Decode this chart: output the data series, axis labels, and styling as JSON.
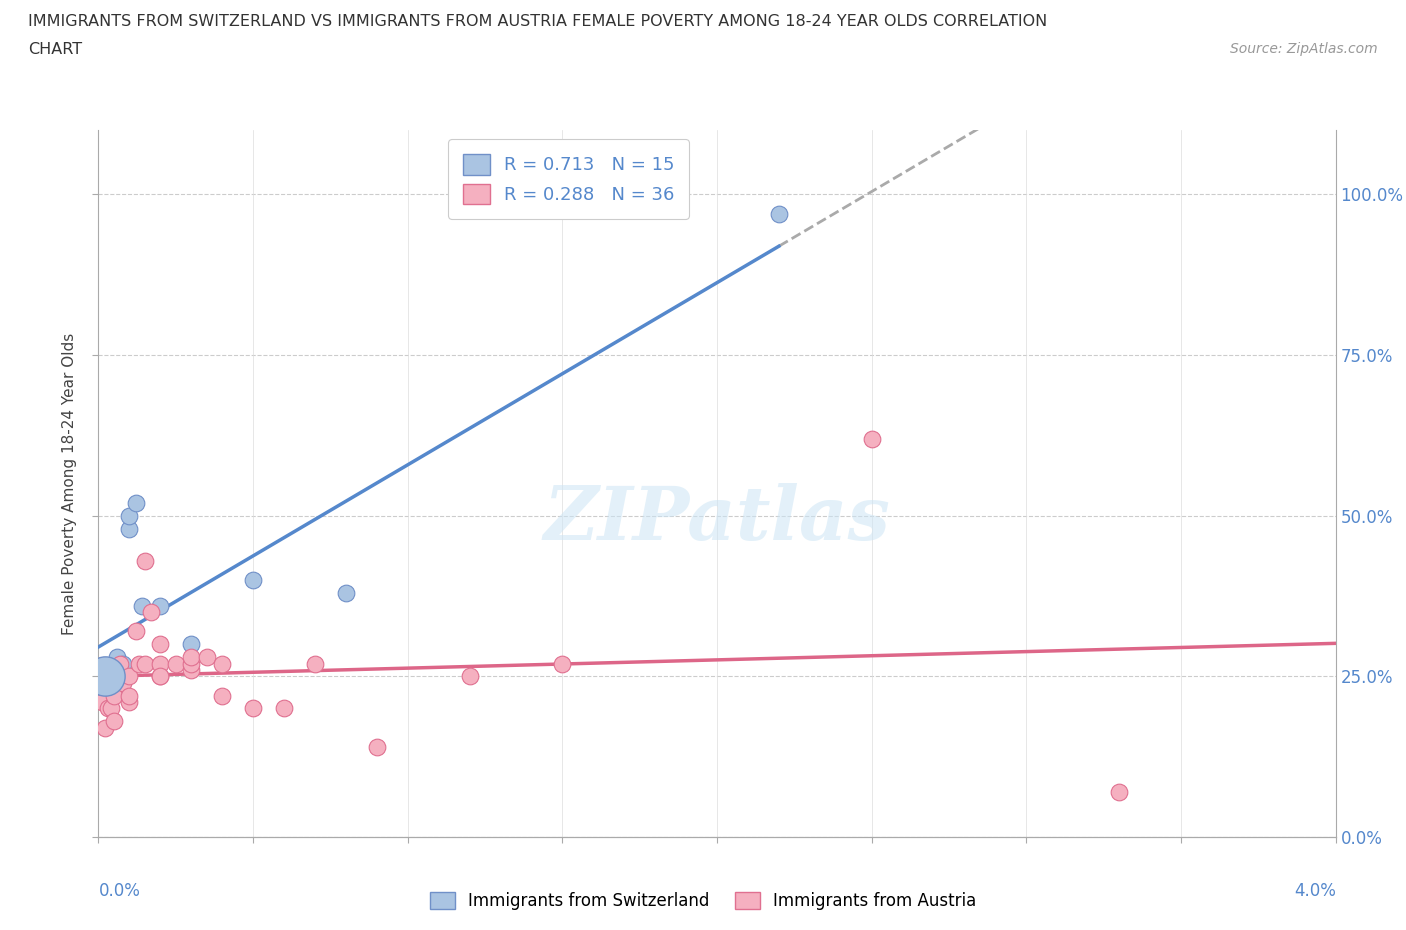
{
  "title_line1": "IMMIGRANTS FROM SWITZERLAND VS IMMIGRANTS FROM AUSTRIA FEMALE POVERTY AMONG 18-24 YEAR OLDS CORRELATION",
  "title_line2": "CHART",
  "source_text": "Source: ZipAtlas.com",
  "ylabel": "Female Poverty Among 18-24 Year Olds",
  "switzerland_color": "#aac4e2",
  "austria_color": "#f5b0c0",
  "switzerland_edge": "#7090c8",
  "austria_edge": "#e07090",
  "regression_switzerland_color": "#5588cc",
  "regression_austria_color": "#dd6688",
  "regression_dashed_color": "#aaaaaa",
  "R_switzerland": 0.713,
  "N_switzerland": 15,
  "R_austria": 0.288,
  "N_austria": 36,
  "watermark": "ZIPatlas",
  "background_color": "#ffffff",
  "switzerland_x": [
    0.0002,
    0.0003,
    0.0004,
    0.0005,
    0.0006,
    0.0008,
    0.001,
    0.001,
    0.0012,
    0.0014,
    0.002,
    0.003,
    0.005,
    0.008,
    0.022
  ],
  "switzerland_y": [
    0.25,
    0.22,
    0.24,
    0.25,
    0.28,
    0.27,
    0.48,
    0.5,
    0.52,
    0.36,
    0.36,
    0.3,
    0.4,
    0.38,
    0.97
  ],
  "austria_x": [
    0.0001,
    0.0002,
    0.0003,
    0.0004,
    0.0005,
    0.0005,
    0.0006,
    0.0007,
    0.0008,
    0.001,
    0.001,
    0.001,
    0.0012,
    0.0013,
    0.0015,
    0.0015,
    0.0017,
    0.002,
    0.002,
    0.002,
    0.002,
    0.0025,
    0.003,
    0.003,
    0.003,
    0.0035,
    0.004,
    0.004,
    0.005,
    0.006,
    0.007,
    0.009,
    0.012,
    0.015,
    0.025,
    0.033
  ],
  "austria_y": [
    0.21,
    0.17,
    0.2,
    0.2,
    0.18,
    0.22,
    0.25,
    0.27,
    0.24,
    0.21,
    0.22,
    0.25,
    0.32,
    0.27,
    0.43,
    0.27,
    0.35,
    0.25,
    0.27,
    0.25,
    0.3,
    0.27,
    0.26,
    0.27,
    0.28,
    0.28,
    0.22,
    0.27,
    0.2,
    0.2,
    0.27,
    0.14,
    0.25,
    0.27,
    0.62,
    0.07
  ],
  "xlim": [
    0.0,
    0.04
  ],
  "ylim": [
    0.0,
    1.1
  ],
  "x_tick_positions": [
    0.0,
    0.005,
    0.01,
    0.015,
    0.02,
    0.025,
    0.03,
    0.035,
    0.04
  ],
  "y_tick_positions": [
    0.0,
    0.25,
    0.5,
    0.75,
    1.0
  ],
  "y_tick_labels": [
    "0.0%",
    "25.0%",
    "50.0%",
    "75.0%",
    "100.0%"
  ],
  "figsize": [
    14.06,
    9.3
  ],
  "dpi": 100
}
